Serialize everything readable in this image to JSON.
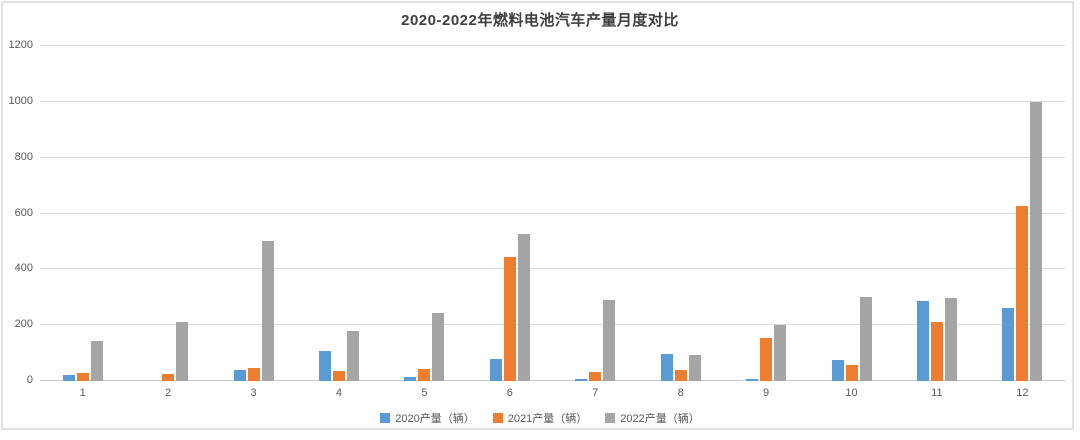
{
  "chart": {
    "title": "2020-2022年燃料电池汽车产量月度对比"
  },
  "chart_data": {
    "type": "bar",
    "title": "2020-2022年燃料电池汽车产量月度对比",
    "categories": [
      "1",
      "2",
      "3",
      "4",
      "5",
      "6",
      "7",
      "8",
      "9",
      "10",
      "11",
      "12"
    ],
    "series": [
      {
        "name": "2020产量（辆）",
        "key": "2020",
        "color": "#5B9BD5",
        "values": [
          20,
          0,
          40,
          108,
          15,
          80,
          8,
          98,
          8,
          75,
          287,
          262
        ]
      },
      {
        "name": "2021产量（辆）",
        "key": "2021",
        "color": "#ED7D31",
        "values": [
          30,
          26,
          45,
          37,
          42,
          443,
          32,
          40,
          154,
          58,
          212,
          626
        ]
      },
      {
        "name": "2022产量（辆）",
        "key": "2022",
        "color": "#A5A5A5",
        "values": [
          142,
          213,
          500,
          180,
          242,
          528,
          291,
          95,
          199,
          300,
          297,
          1000
        ]
      }
    ],
    "xlabel": "",
    "ylabel": "",
    "ylim": [
      0,
      1200
    ],
    "yticks": [
      0,
      200,
      400,
      600,
      800,
      1000,
      1200
    ],
    "grid": true,
    "legend_position": "bottom",
    "colors": {
      "title_text": "#3f3f3f",
      "axis_text": "#595959",
      "gridline": "#dcdcdc",
      "frame_border": "#e2e2e2"
    }
  }
}
